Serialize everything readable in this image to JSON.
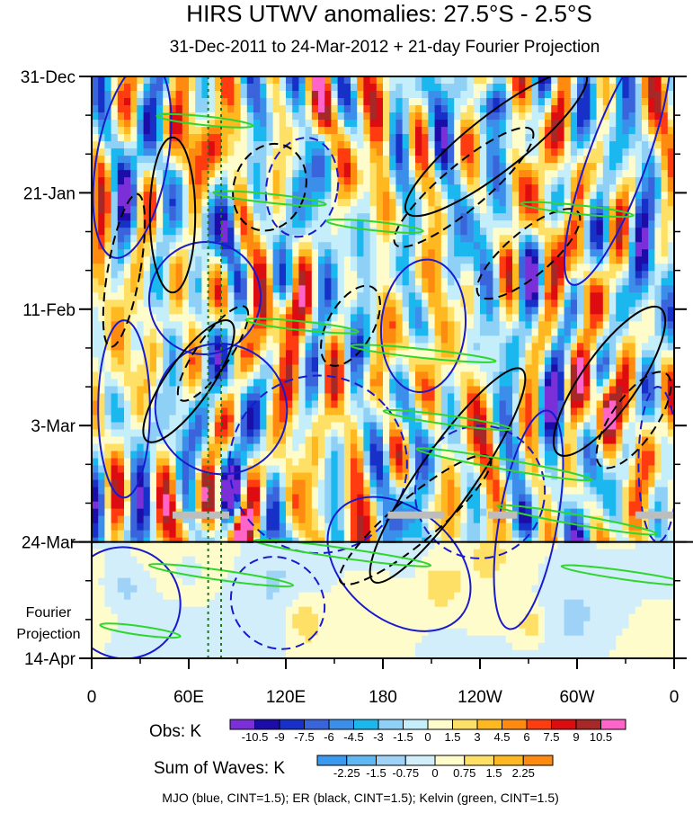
{
  "chart_data": {
    "type": "heatmap",
    "title": "HIRS UTWV anomalies: 27.5°S - 2.5°S",
    "subtitle": "31-Dec-2011 to 24-Mar-2012 + 21-day Fourier Projection",
    "x_ticks": [
      "0",
      "60E",
      "120E",
      "180",
      "120W",
      "60W",
      "0"
    ],
    "x_tick_values": [
      0,
      60,
      120,
      180,
      240,
      300,
      360
    ],
    "xlim": [
      0,
      360
    ],
    "y_ticks": [
      "31-Dec",
      "21-Jan",
      "11-Feb",
      "3-Mar",
      "24-Mar",
      "14-Apr"
    ],
    "y_tick_values": [
      0,
      21,
      42,
      63,
      84,
      105
    ],
    "ylim": [
      0,
      105
    ],
    "forecast_start_day": 84,
    "projection_label_line1": "Fourier",
    "projection_label_line2": "Projection",
    "reference_lines_lon": [
      72,
      80
    ],
    "obs_colorbar": {
      "label": "Obs: K",
      "levels": [
        "-10.5",
        "-9",
        "-7.5",
        "-6",
        "-4.5",
        "-3",
        "-1.5",
        "0",
        "1.5",
        "3",
        "4.5",
        "6",
        "7.5",
        "9",
        "10.5"
      ],
      "colors": [
        "#7b2fd8",
        "#1c0ca8",
        "#1630c8",
        "#3a64dc",
        "#3b8fea",
        "#1ab8ee",
        "#8fd0f6",
        "#c4eefa",
        "#fffccc",
        "#ffe066",
        "#ffb820",
        "#ff8a10",
        "#ff3c10",
        "#dc0c10",
        "#a82828",
        "#ff64c8"
      ]
    },
    "waves_colorbar": {
      "label": "Sum of Waves: K",
      "levels": [
        "-2.25",
        "-1.5",
        "-0.75",
        "0",
        "0.75",
        "1.5",
        "2.25"
      ],
      "colors": [
        "#3a9af0",
        "#60b8f2",
        "#9ed2f6",
        "#d2eefa",
        "#fffccc",
        "#ffe066",
        "#ffb820",
        "#ff8a10"
      ]
    },
    "contour_legend": "MJO (blue, CINT=1.5); ER (black, CINT=1.5); Kelvin (green, CINT=1.5)",
    "series_colors": {
      "mjo": "#1a1acd",
      "er": "#000000",
      "kelvin": "#2ed62e"
    }
  }
}
